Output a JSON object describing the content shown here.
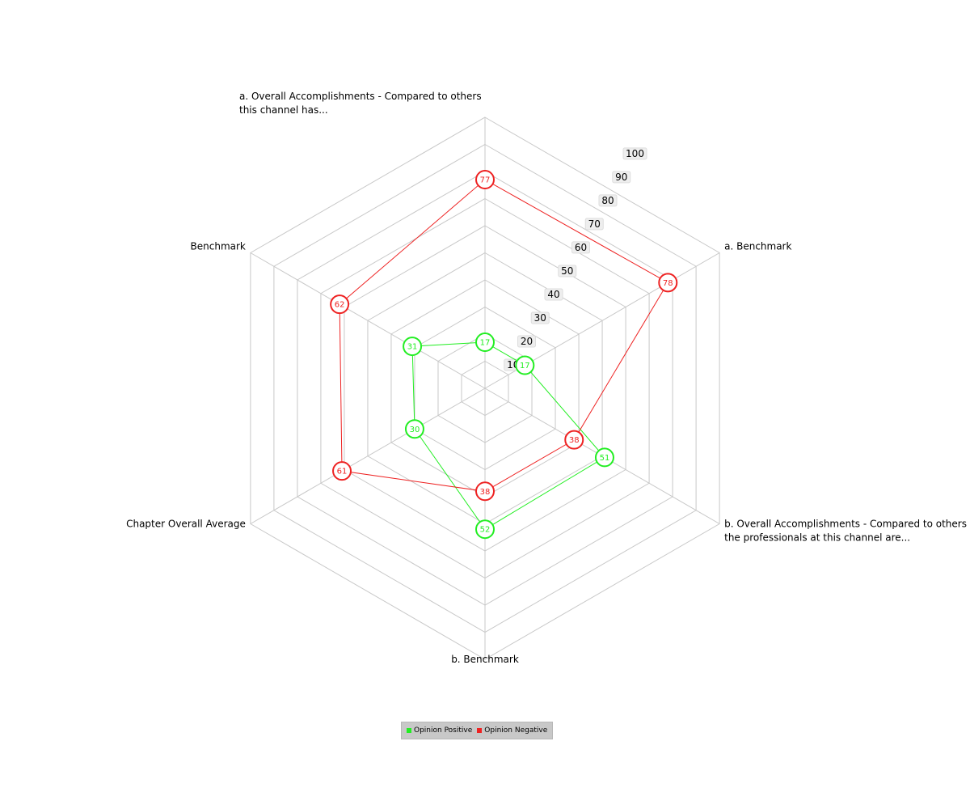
{
  "chart_data": {
    "type": "radar",
    "axes": [
      [
        "a. Overall Accomplishments - Compared to others",
        "this channel has..."
      ],
      [
        "a. Benchmark"
      ],
      [
        "b. Overall Accomplishments - Compared to others",
        "the professionals at this channel are..."
      ],
      [
        "b. Benchmark"
      ],
      [
        "Chapter Overall Average"
      ],
      [
        "Benchmark"
      ]
    ],
    "rlim": [
      0,
      100
    ],
    "ticks": [
      10,
      20,
      30,
      40,
      50,
      60,
      70,
      80,
      90,
      100
    ],
    "grid": true,
    "legend_position": "bottom-center",
    "series": [
      {
        "name": "Opinion Positive",
        "color": "#22ee22",
        "values": [
          17,
          17,
          51,
          52,
          30,
          31
        ]
      },
      {
        "name": "Opinion Negative",
        "color": "#ee2222",
        "values": [
          77,
          78,
          38,
          38,
          61,
          62
        ]
      }
    ]
  }
}
